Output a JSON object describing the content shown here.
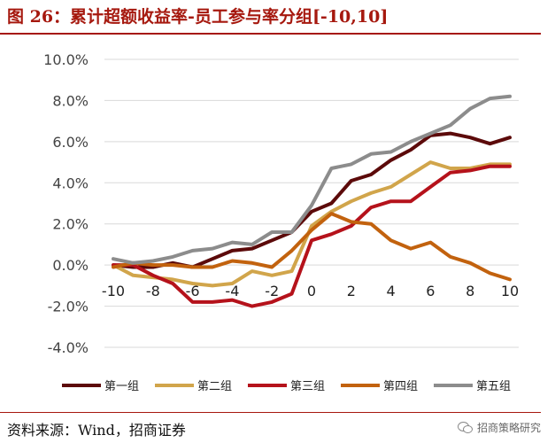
{
  "header": {
    "title": "图 26：累计超额收益率-员工参与率分组[-10,10]"
  },
  "footer": {
    "source": "资料来源：Wind，招商证券",
    "watermark": "招商策略研究",
    "watermark_icon": "wechat-icon"
  },
  "chart_data": {
    "type": "line",
    "x": [
      -10,
      -9,
      -8,
      -7,
      -6,
      -5,
      -4,
      -3,
      -2,
      -1,
      0,
      1,
      2,
      3,
      4,
      5,
      6,
      7,
      8,
      9,
      10
    ],
    "x_ticks": [
      -10,
      -8,
      -6,
      -4,
      -2,
      0,
      2,
      4,
      6,
      8,
      10
    ],
    "ylim": [
      -0.04,
      0.1
    ],
    "y_ticks": [
      -0.04,
      -0.02,
      0.0,
      0.02,
      0.04,
      0.06,
      0.08,
      0.1
    ],
    "y_tick_labels": [
      "-4.0%",
      "-2.0%",
      "0.0%",
      "2.0%",
      "4.0%",
      "6.0%",
      "8.0%",
      "10.0%"
    ],
    "grid": true,
    "legend_position": "bottom",
    "series": [
      {
        "name": "第一组",
        "color": "#5c0a0a",
        "values": [
          0.0,
          -0.001,
          -0.001,
          0.001,
          -0.001,
          0.003,
          0.007,
          0.008,
          0.012,
          0.016,
          0.026,
          0.03,
          0.041,
          0.044,
          0.051,
          0.056,
          0.063,
          0.064,
          0.062,
          0.059,
          0.062
        ]
      },
      {
        "name": "第二组",
        "color": "#d1a54b",
        "values": [
          0.0,
          -0.005,
          -0.006,
          -0.007,
          -0.009,
          -0.01,
          -0.009,
          -0.003,
          -0.005,
          -0.003,
          0.019,
          0.026,
          0.031,
          0.035,
          0.038,
          0.044,
          0.05,
          0.047,
          0.047,
          0.049,
          0.049
        ]
      },
      {
        "name": "第三组",
        "color": "#b5121b",
        "values": [
          0.0,
          0.0,
          -0.005,
          -0.009,
          -0.018,
          -0.018,
          -0.017,
          -0.02,
          -0.018,
          -0.014,
          0.012,
          0.015,
          0.019,
          0.028,
          0.031,
          0.031,
          0.038,
          0.045,
          0.046,
          0.048,
          0.048
        ]
      },
      {
        "name": "第四组",
        "color": "#c2620e",
        "values": [
          -0.001,
          0.001,
          0.0,
          0.0,
          -0.001,
          -0.001,
          0.002,
          0.001,
          -0.001,
          0.007,
          0.017,
          0.025,
          0.021,
          0.02,
          0.012,
          0.008,
          0.011,
          0.004,
          0.001,
          -0.004,
          -0.007
        ]
      },
      {
        "name": "第五组",
        "color": "#8c8c8c",
        "values": [
          0.003,
          0.001,
          0.002,
          0.004,
          0.007,
          0.008,
          0.011,
          0.01,
          0.016,
          0.016,
          0.029,
          0.047,
          0.049,
          0.054,
          0.055,
          0.06,
          0.064,
          0.068,
          0.076,
          0.081,
          0.082
        ]
      }
    ]
  }
}
